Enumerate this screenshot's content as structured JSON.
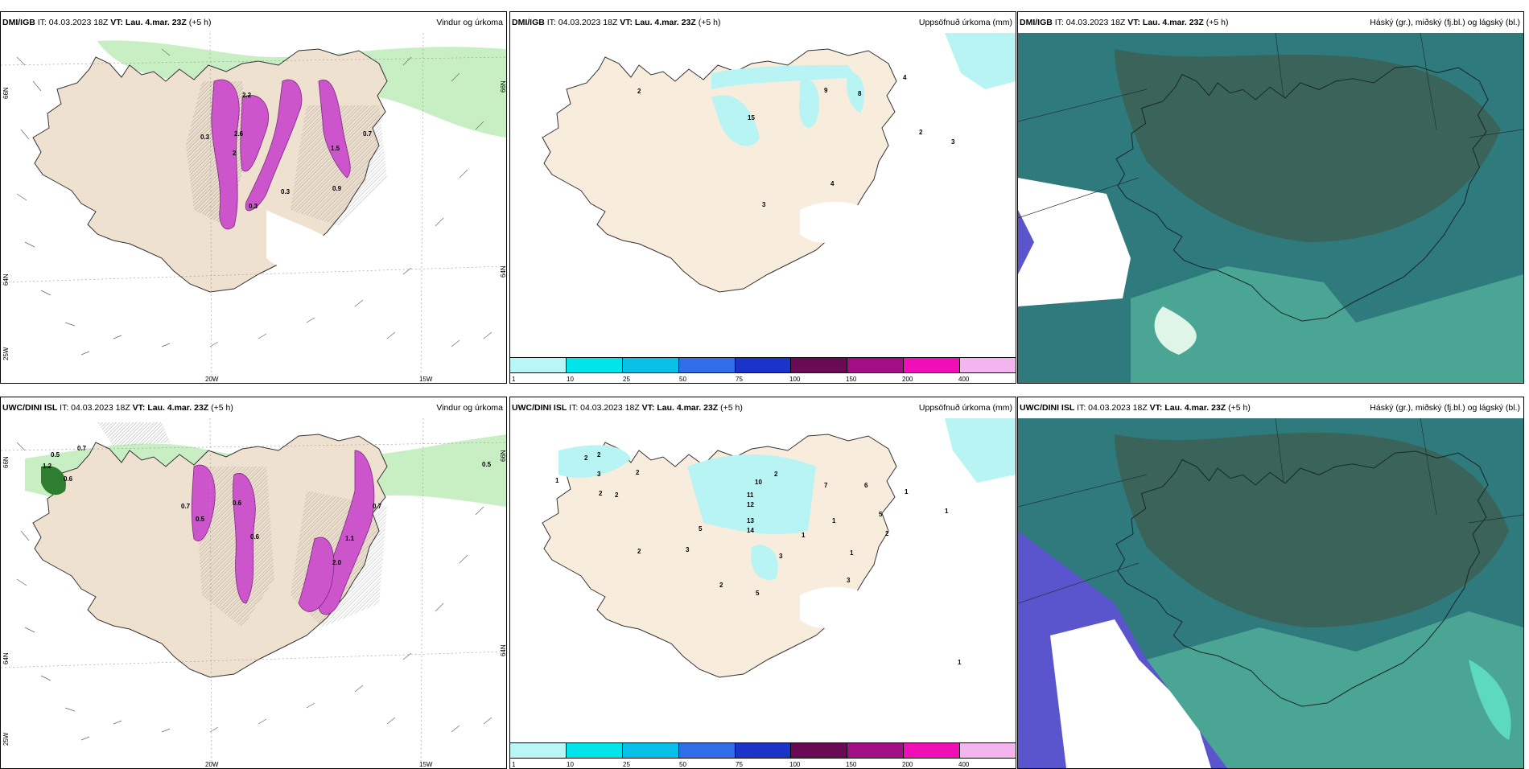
{
  "colors": {
    "land": "#efe1d0",
    "green": "#c7efc3",
    "magenta": "#cc55cc",
    "cyan": "#b8f4f4",
    "cloud_dark": "#2e6f74",
    "cloud_olive": "#4c5b48",
    "cloud_mid": "#3f9a96"
  },
  "rows": [
    {
      "model": "DMI/IGB",
      "it": "IT: 04.03.2023 18Z",
      "vt": "VT: Lau. 4.mar. 23Z",
      "lead": "(+5 h)",
      "wind_labels": [
        "2.2",
        "2.6",
        "0.3",
        "2",
        "1.5",
        "0.7",
        "0.9",
        "0.3",
        "0.3"
      ],
      "precip_labels": [
        "2",
        "15",
        "9",
        "8",
        "4",
        "2",
        "3",
        "4",
        "3"
      ]
    },
    {
      "model": "UWC/DINI ISL",
      "it": "IT: 04.03.2023 18Z",
      "vt": "VT: Lau. 4.mar. 23Z",
      "lead": "(+5 h)",
      "wind_labels": [
        "0.5",
        "0.7",
        "1.2",
        "0.6",
        "0.7",
        "0.5",
        "0.5",
        "1.1",
        "2.0",
        "0.7",
        "0.6",
        "0.6"
      ],
      "precip_labels": [
        "1",
        "2",
        "2",
        "3",
        "2",
        "2",
        "10",
        "11",
        "2",
        "12",
        "13",
        "14",
        "7",
        "6",
        "5",
        "3",
        "2",
        "2",
        "5",
        "1",
        "1",
        "1",
        "2",
        "2",
        "3",
        "3",
        "5",
        "1",
        "1",
        "1"
      ]
    }
  ],
  "panel_titles": {
    "wind": "Vindur og úrkoma",
    "precip": "Uppsöfnuð úrkoma (mm)",
    "cloud": "Háský (gr.), miðský (fj.bl.) og lágský (bl.)"
  },
  "axis": {
    "lon_a": "20W",
    "lon_b": "15W",
    "lat_a": "66N",
    "lat_b": "64N",
    "lon_left": "25W"
  },
  "colorbar": {
    "ticks": [
      "1",
      "10",
      "25",
      "50",
      "75",
      "100",
      "150",
      "200",
      "400"
    ],
    "colors": [
      "#b9f7f7",
      "#00e4ea",
      "#08bfe8",
      "#2f6ee8",
      "#1c33c9",
      "#6a0a54",
      "#a10e86",
      "#f00fb6",
      "#f4b4ef"
    ]
  }
}
